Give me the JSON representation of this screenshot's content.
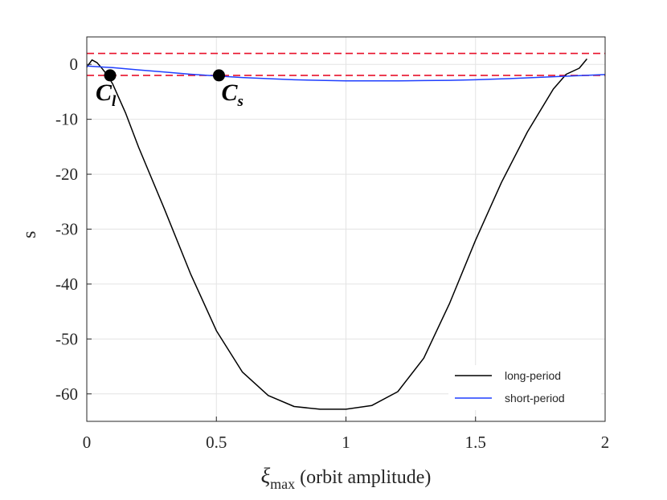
{
  "chart_data": {
    "type": "line",
    "title": "",
    "xlabel_symbol": "ξ",
    "xlabel_subscript": "max",
    "xlabel_rest": " (orbit amplitude)",
    "ylabel": "s",
    "xlim": [
      0,
      2
    ],
    "ylim": [
      -65,
      5
    ],
    "xticks": [
      0,
      0.5,
      1,
      1.5,
      2
    ],
    "xtick_labels": [
      "0",
      "0.5",
      "1",
      "1.5",
      "2"
    ],
    "yticks": [
      0,
      -10,
      -20,
      -30,
      -40,
      -50,
      -60
    ],
    "ytick_labels": [
      "0",
      "-10",
      "-20",
      "-30",
      "-40",
      "-50",
      "-60"
    ],
    "grid": true,
    "legend_position": "bottom-right",
    "series": [
      {
        "name": "long-period",
        "color": "#000000",
        "x": [
          0,
          0.02,
          0.04,
          0.06,
          0.08,
          0.1,
          0.15,
          0.2,
          0.3,
          0.4,
          0.5,
          0.6,
          0.7,
          0.8,
          0.9,
          1.0,
          1.1,
          1.2,
          1.3,
          1.4,
          1.5,
          1.6,
          1.7,
          1.8,
          1.85,
          1.9,
          1.93
        ],
        "y": [
          -0.5,
          0.8,
          0.3,
          -0.8,
          -2.0,
          -3.6,
          -8.9,
          -15.1,
          -26.4,
          -38.1,
          -48.5,
          -56.0,
          -60.3,
          -62.3,
          -62.8,
          -62.8,
          -62.1,
          -59.6,
          -53.5,
          -43.5,
          -32.0,
          -21.5,
          -12.3,
          -4.5,
          -1.8,
          -0.7,
          1.0
        ]
      },
      {
        "name": "short-period",
        "color": "#1f3fff",
        "x": [
          0,
          0.1,
          0.2,
          0.3,
          0.4,
          0.5,
          0.6,
          0.7,
          0.8,
          0.9,
          1.0,
          1.1,
          1.2,
          1.3,
          1.4,
          1.5,
          1.6,
          1.7,
          1.8,
          1.9,
          2.0
        ],
        "y": [
          -0.3,
          -0.6,
          -1.0,
          -1.4,
          -1.8,
          -2.1,
          -2.4,
          -2.6,
          -2.8,
          -2.9,
          -3.0,
          -3.0,
          -3.0,
          -2.95,
          -2.9,
          -2.8,
          -2.65,
          -2.45,
          -2.25,
          -2.05,
          -1.85
        ]
      }
    ],
    "reference_lines": [
      {
        "y": 2,
        "color": "#e8102a",
        "style": "dashed"
      },
      {
        "y": -2,
        "color": "#e8102a",
        "style": "dashed"
      }
    ],
    "annotations": [
      {
        "x": 0.09,
        "y": -2,
        "label": "C",
        "subscript": "l"
      },
      {
        "x": 0.51,
        "y": -2,
        "label": "C",
        "subscript": "s"
      }
    ]
  }
}
